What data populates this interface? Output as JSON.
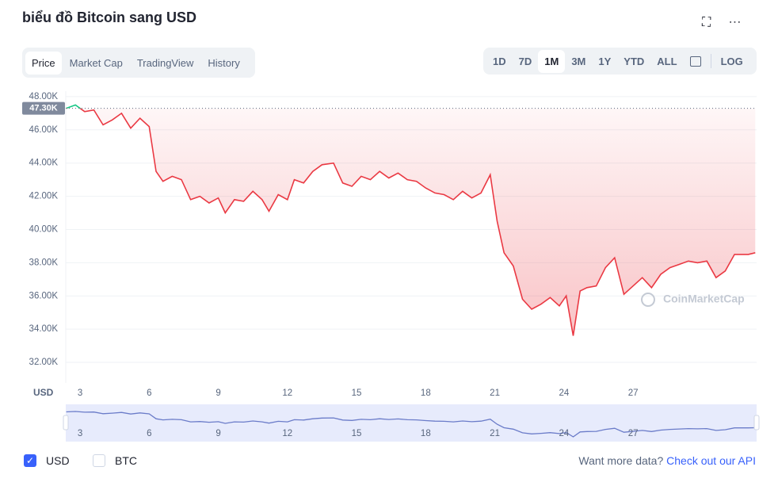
{
  "header": {
    "title": "biểu đồ Bitcoin sang USD"
  },
  "tabs": [
    "Price",
    "Market Cap",
    "TradingView",
    "History"
  ],
  "ranges": [
    "1D",
    "7D",
    "1M",
    "3M",
    "1Y",
    "YTD",
    "ALL",
    "LOG"
  ],
  "chart_data": {
    "type": "line",
    "y_label": "USD",
    "watermark": "CoinMarketCap",
    "x": [
      2.4,
      2.8,
      3.2,
      3.6,
      4.0,
      4.4,
      4.8,
      5.2,
      5.6,
      6.0,
      6.3,
      6.6,
      7.0,
      7.4,
      7.8,
      8.2,
      8.6,
      9.0,
      9.3,
      9.7,
      10.1,
      10.5,
      10.9,
      11.2,
      11.6,
      12.0,
      12.3,
      12.7,
      13.1,
      13.5,
      14.0,
      14.4,
      14.8,
      15.2,
      15.6,
      16.0,
      16.4,
      16.8,
      17.2,
      17.6,
      18.0,
      18.4,
      18.8,
      19.2,
      19.6,
      20.0,
      20.4,
      20.8,
      21.1,
      21.4,
      21.8,
      22.2,
      22.6,
      23.0,
      23.4,
      23.8,
      24.1,
      24.4,
      24.7,
      25.0,
      25.4,
      25.8,
      26.2,
      26.6,
      27.0,
      27.4,
      27.8,
      28.2,
      28.6,
      29.0,
      29.4,
      29.8,
      30.2,
      30.6,
      31.0,
      31.4,
      32.0,
      32.3
    ],
    "series": [
      {
        "name": "USD",
        "color": "#ea3943",
        "up_color": "#16c784",
        "values": [
          47300,
          47500,
          47100,
          47200,
          46300,
          46600,
          47000,
          46100,
          46700,
          46200,
          43500,
          42900,
          43200,
          43000,
          41800,
          42000,
          41600,
          41900,
          41000,
          41800,
          41700,
          42300,
          41800,
          41100,
          42100,
          41800,
          43000,
          42800,
          43500,
          43900,
          44000,
          42800,
          42600,
          43200,
          43000,
          43500,
          43100,
          43400,
          43000,
          42900,
          42500,
          42200,
          42100,
          41800,
          42300,
          41900,
          42200,
          43300,
          40500,
          38600,
          37800,
          35800,
          35200,
          35500,
          35900,
          35400,
          36000,
          33600,
          36300,
          36500,
          36600,
          37700,
          38300,
          36100,
          36600,
          37100,
          36500,
          37300,
          37700,
          37900,
          38100,
          38000,
          38100,
          37100,
          37500,
          38500,
          38500,
          38600
        ]
      }
    ],
    "xlim": [
      2.38,
      32.36
    ],
    "ylim": [
      30760,
      48330
    ],
    "xticks": [
      3,
      6,
      9,
      12,
      15,
      18,
      21,
      24,
      27
    ],
    "yticks": [
      {
        "value": 32000,
        "label": "32.00K"
      },
      {
        "value": 34000,
        "label": "34.00K"
      },
      {
        "value": 36000,
        "label": "36.00K"
      },
      {
        "value": 38000,
        "label": "38.00K"
      },
      {
        "value": 40000,
        "label": "40.00K"
      },
      {
        "value": 42000,
        "label": "42.00K"
      },
      {
        "value": 44000,
        "label": "44.00K"
      },
      {
        "value": 46000,
        "label": "46.00K"
      },
      {
        "value": 48000,
        "label": "48.00K"
      }
    ],
    "price_marker": {
      "value": 47300,
      "label": "47.30K"
    },
    "grid": true
  },
  "legend": [
    "USD",
    "BTC"
  ],
  "footer": {
    "prompt": "Want more data?",
    "link": "Check out our API"
  }
}
